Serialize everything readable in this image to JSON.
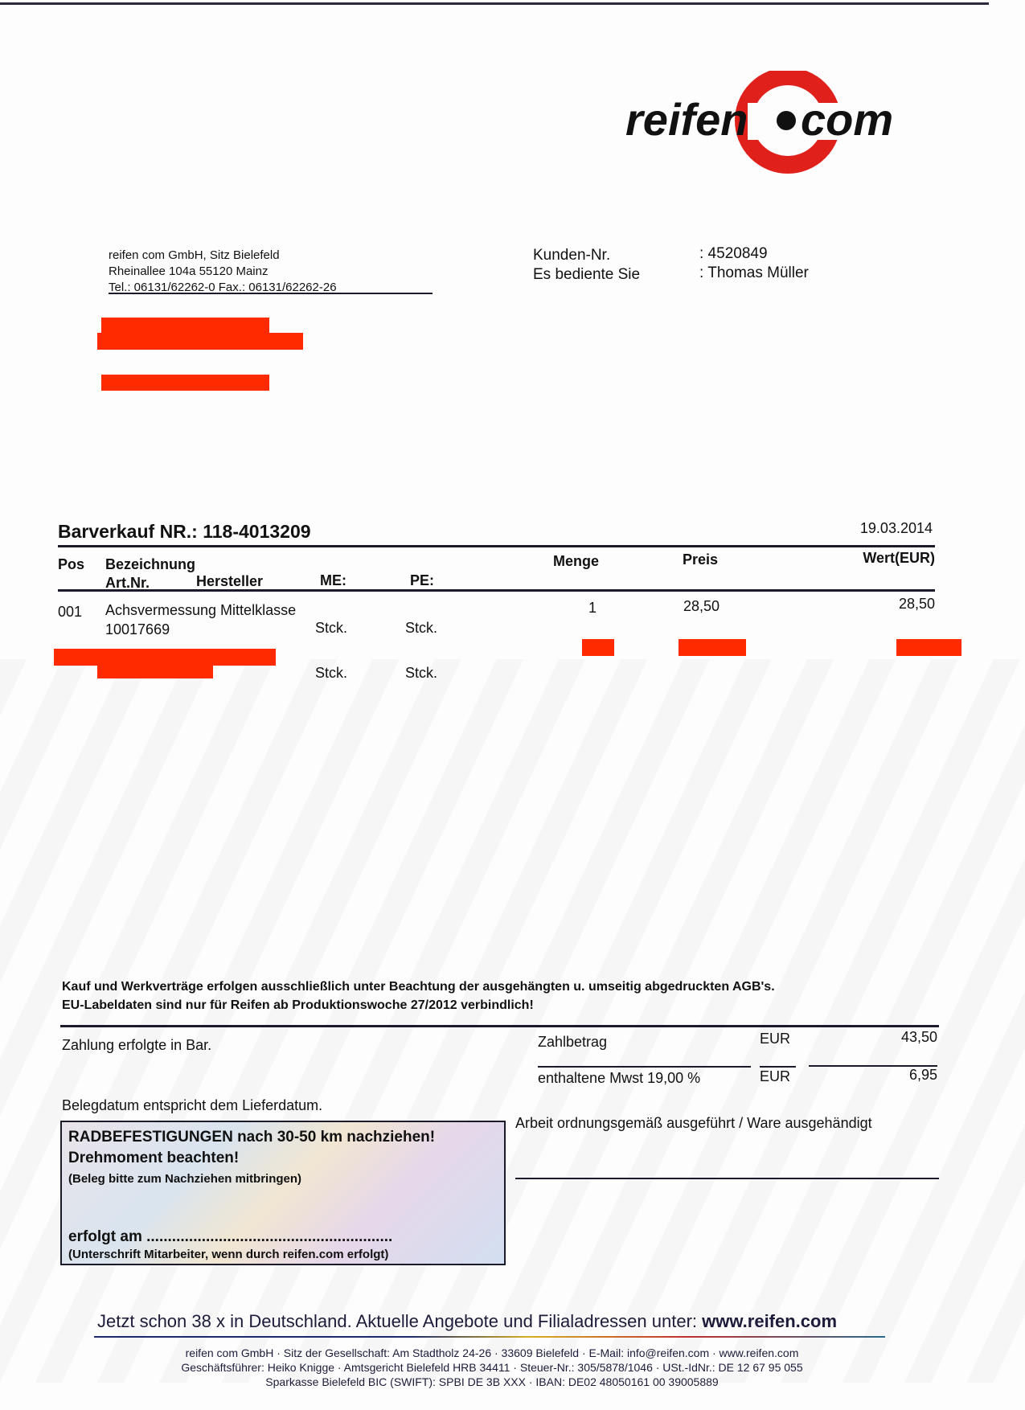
{
  "logo": {
    "text_left": "reifen",
    "text_right": "com",
    "ring_color": "#e0201b"
  },
  "sender": {
    "line1": "reifen com GmbH, Sitz Bielefeld",
    "line2": "Rheinallee 104a 55120 Mainz",
    "line3": "Tel.: 06131/62262-0 Fax.: 06131/62262-26"
  },
  "customer": {
    "number_label": "Kunden-Nr.",
    "number_value": ": 4520849",
    "served_label": "Es bediente Sie",
    "served_value": ": Thomas Müller"
  },
  "redaction_color": "#ff2a00",
  "invoice": {
    "title": "Barverkauf NR.: 118-4013209",
    "date": "19.03.2014"
  },
  "table": {
    "headers": {
      "pos": "Pos",
      "bezeichnung": "Bezeichnung",
      "artnr": "Art.Nr.",
      "hersteller": "Hersteller",
      "me": "ME:",
      "pe": "PE:",
      "menge": "Menge",
      "preis": "Preis",
      "wert": "Wert(EUR)"
    },
    "rows": [
      {
        "pos": "001",
        "bezeichnung": "Achsvermessung Mittelklasse",
        "artnr": "10017669",
        "me": "Stck.",
        "pe": "Stck.",
        "menge": "1",
        "preis": "28,50",
        "wert": "28,50"
      },
      {
        "me": "Stck.",
        "pe": "Stck."
      }
    ]
  },
  "terms": {
    "line1": "Kauf und Werkverträge erfolgen ausschließlich unter Beachtung der ausgehängten u. umseitig  abgedruckten AGB's.",
    "line2": "EU-Labeldaten sind nur für Reifen ab Produktionswoche 27/2012 verbindlich!"
  },
  "payment": {
    "note": "Zahlung erfolgte in Bar.",
    "total_label": "Zahlbetrag",
    "total_currency": "EUR",
    "total_value": "43,50",
    "vat_label": "enthaltene Mwst 19,00 %",
    "vat_currency": "EUR",
    "vat_value": "6,95",
    "date_note": "Belegdatum entspricht dem Lieferdatum."
  },
  "notice": {
    "line1": "RADBEFESTIGUNGEN nach 30-50 km nachziehen!",
    "line2": "Drehmoment beachten!",
    "line3": "(Beleg bitte zum Nachziehen mitbringen)",
    "done_label": "erfolgt am ..........................................................",
    "signature_note": "(Unterschrift Mitarbeiter, wenn durch reifen.com erfolgt)"
  },
  "confirmation": "Arbeit ordnungsgemäß ausgeführt / Ware ausgehändigt",
  "footer": {
    "slogan": "Jetzt schon 38 x in Deutschland. Aktuelle Angebote und Filialadressen unter: ",
    "slogan_url": "www.reifen.com",
    "line1": "reifen com GmbH · Sitz der Gesellschaft: Am Stadtholz 24-26 · 33609 Bielefeld · E-Mail: info@reifen.com · www.reifen.com",
    "line2": "Geschäftsführer: Heiko Knigge · Amtsgericht Bielefeld HRB 34411 · Steuer-Nr.: 305/5878/1046 · USt.-IdNr.: DE 12 67 95 055",
    "line3": "Sparkasse Bielefeld BIC (SWIFT): SPBI DE 3B XXX · IBAN: DE02 48050161 00 39005889"
  }
}
